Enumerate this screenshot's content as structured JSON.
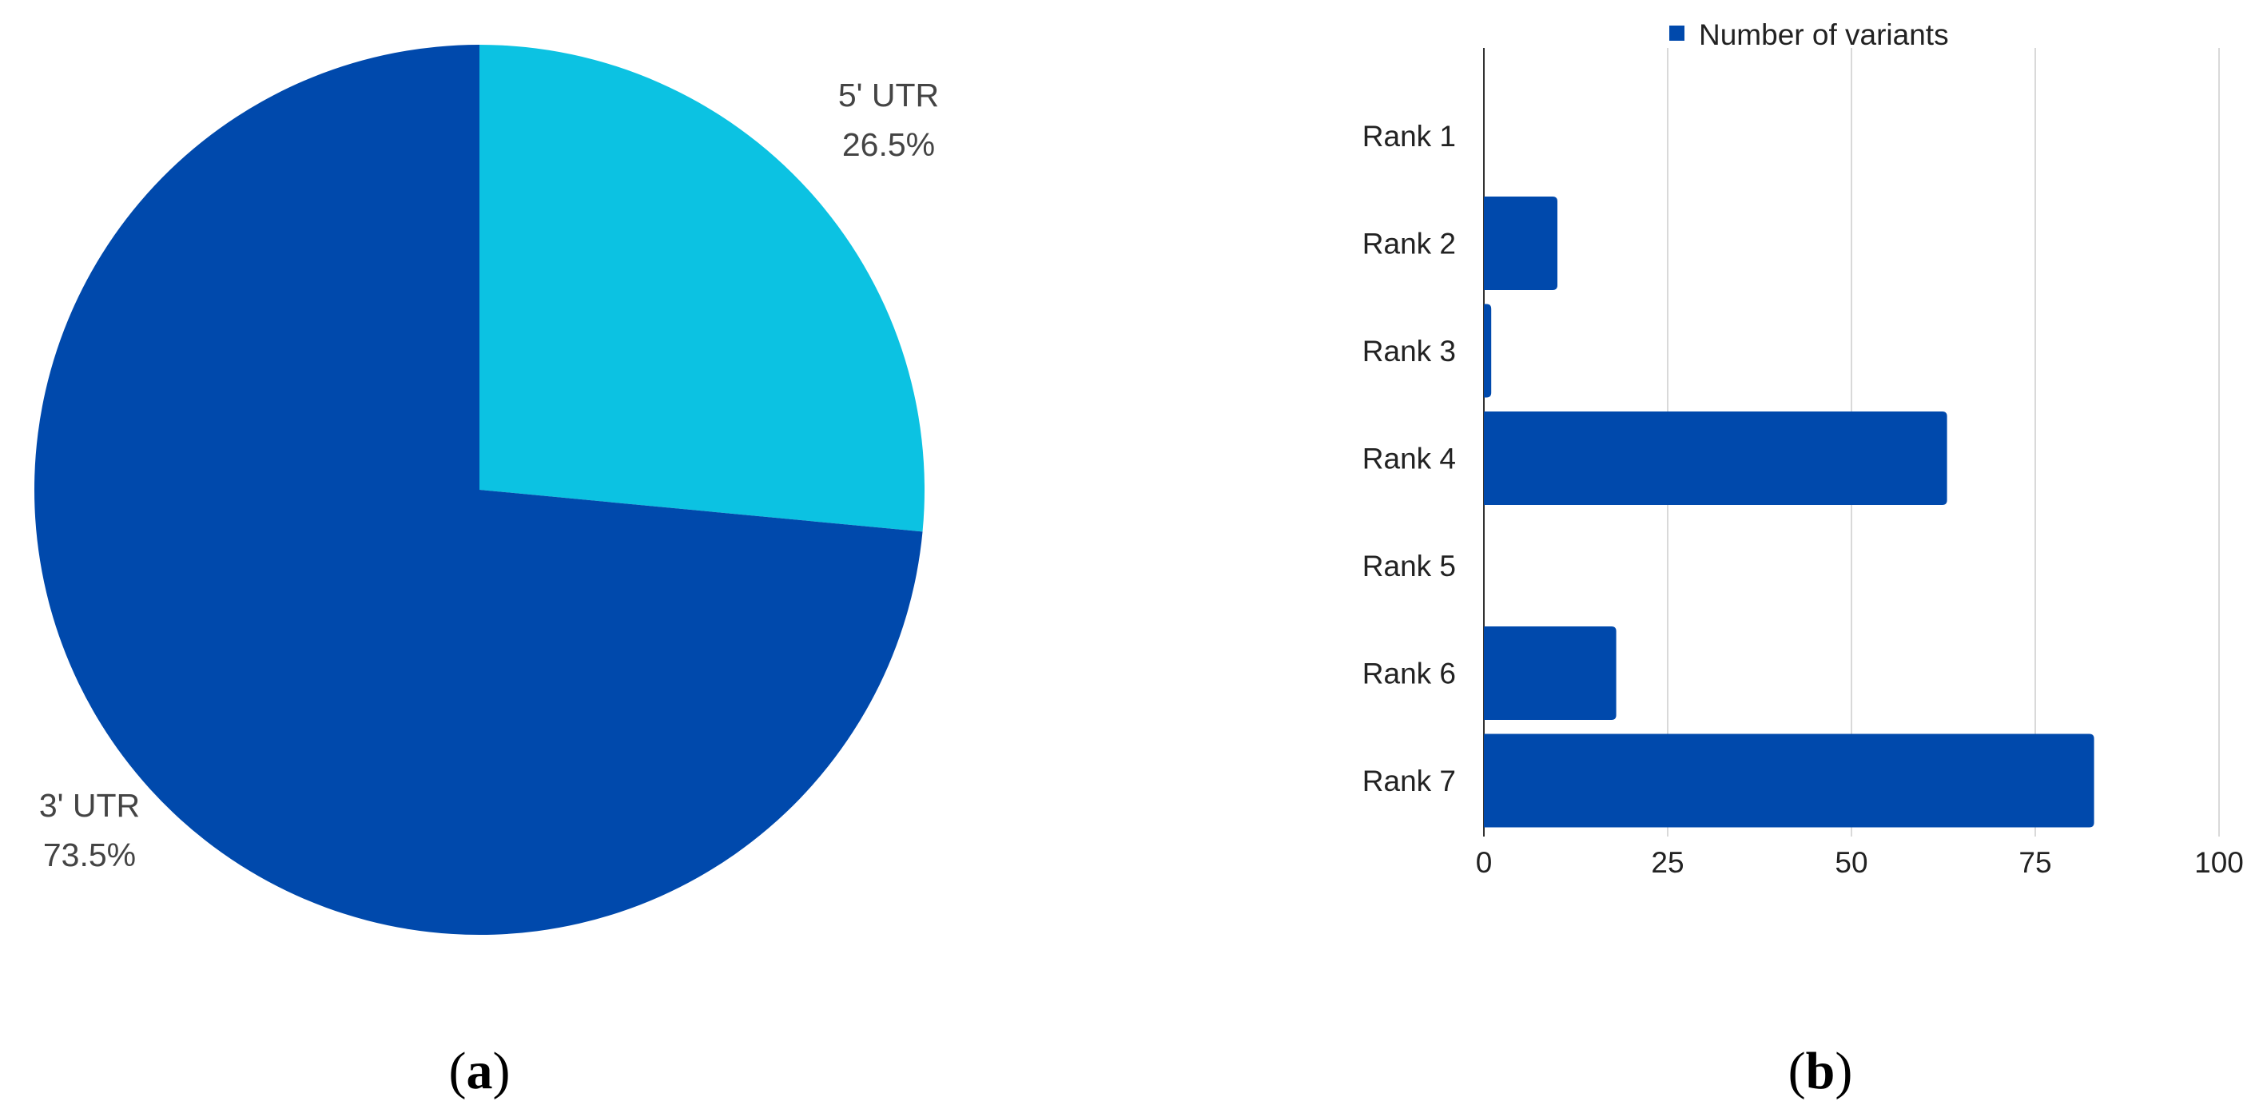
{
  "panels": {
    "a": {
      "open": "(",
      "letter": "a",
      "close": ")"
    },
    "b": {
      "open": "(",
      "letter": "b",
      "close": ")"
    }
  },
  "chart_data": [
    {
      "type": "pie",
      "slices": [
        {
          "label": "5' UTR",
          "value": 26.5,
          "value_label": "26.5%",
          "color": "#0cc2e2"
        },
        {
          "label": "3' UTR",
          "value": 73.5,
          "value_label": "73.5%",
          "color": "#0049ac"
        }
      ],
      "start_angle_deg": 0,
      "direction": "clockwise"
    },
    {
      "type": "bar",
      "orientation": "horizontal",
      "categories": [
        "Rank 1",
        "Rank 2",
        "Rank 3",
        "Rank 4",
        "Rank 5",
        "Rank 6",
        "Rank 7"
      ],
      "series": [
        {
          "name": "Number of variants",
          "values": [
            0,
            10,
            1,
            63,
            0,
            18,
            83
          ],
          "color": "#0049ac"
        }
      ],
      "xlim": [
        0,
        100
      ],
      "xticks": [
        0,
        25,
        50,
        75,
        100
      ],
      "grid": "vertical",
      "legend": "top"
    }
  ]
}
